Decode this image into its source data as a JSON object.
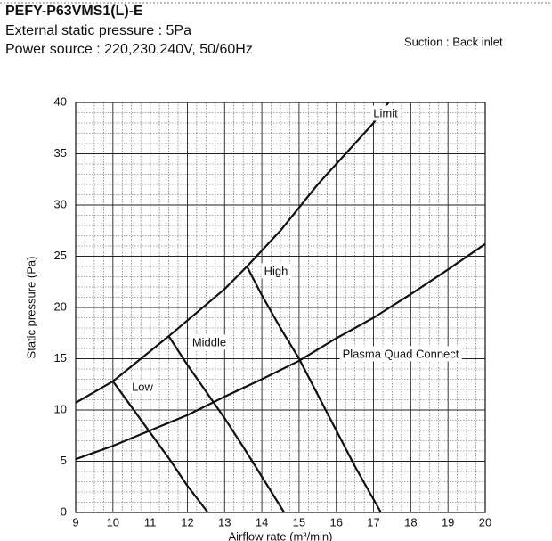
{
  "chart_data": {
    "type": "line",
    "title": "PEFY-P63VMS1(L)-E",
    "subtitle": [
      "External static pressure : 5Pa",
      "Power source : 220,230,240V, 50/60Hz"
    ],
    "annotation": "Suction : Back inlet",
    "x_label": "Airflow rate (m³/min)",
    "y_label": "Static pressure (Pa)",
    "xlim": [
      9,
      20
    ],
    "ylim": [
      0,
      40
    ],
    "xticks": [
      9,
      10,
      11,
      12,
      13,
      14,
      15,
      16,
      17,
      18,
      19,
      20
    ],
    "yticks": [
      0,
      5,
      10,
      15,
      20,
      25,
      30,
      35,
      40
    ],
    "grid": true,
    "series": [
      {
        "name": "Limit",
        "color": "#111111",
        "x": [
          9,
          10,
          11.5,
          13,
          13.6,
          14.5,
          15.5,
          16.5,
          17,
          17.4
        ],
        "values": [
          10.7,
          12.8,
          17.2,
          21.8,
          24,
          27.5,
          32,
          36,
          38,
          40
        ]
      },
      {
        "name": "Plasma Quad Connect",
        "color": "#111111",
        "x": [
          9,
          10,
          11,
          12,
          13,
          14,
          15,
          16,
          17,
          18,
          19,
          20
        ],
        "values": [
          5.2,
          6.5,
          8,
          9.5,
          11.3,
          13,
          14.8,
          17,
          19,
          21.3,
          23.7,
          26.2
        ]
      },
      {
        "name": "High",
        "color": "#111111",
        "x": [
          13.6,
          14,
          14.5,
          15,
          15.5,
          16,
          16.5,
          17.2
        ],
        "values": [
          24,
          21.2,
          18,
          15,
          11.5,
          8,
          4.5,
          0
        ]
      },
      {
        "name": "Middle",
        "color": "#111111",
        "x": [
          11.5,
          12,
          12.5,
          13,
          13.5,
          14,
          14.6
        ],
        "values": [
          17.2,
          14.4,
          11.8,
          9.2,
          6.4,
          3.5,
          0
        ]
      },
      {
        "name": "Low",
        "color": "#111111",
        "x": [
          10,
          10.5,
          11,
          11.5,
          12,
          12.55
        ],
        "values": [
          12.8,
          10.3,
          7.8,
          5.3,
          2.6,
          0
        ]
      }
    ]
  }
}
